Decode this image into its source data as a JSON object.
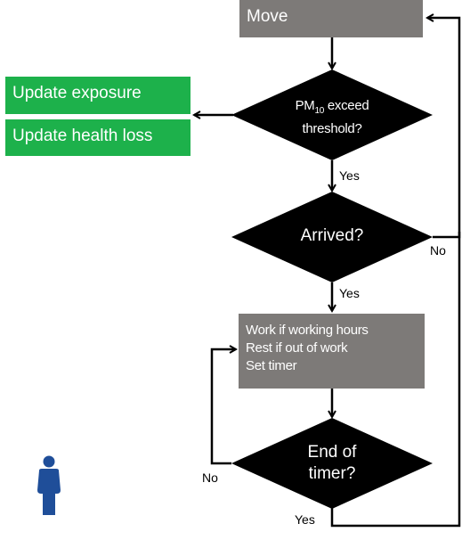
{
  "nodes": {
    "move": "Move",
    "update_exposure": "Update exposure",
    "update_health_loss": "Update health loss",
    "pm_check": {
      "pre": "PM",
      "sub": "10",
      "post": " exceed",
      "line2": "threshold?"
    },
    "arrived": "Arrived?",
    "work_lines": [
      "Work if working hours",
      "Rest if out of work",
      "Set timer"
    ],
    "end_timer_line1": "End of",
    "end_timer_line2": "timer?"
  },
  "edges": {
    "yes_pm": "Yes",
    "yes_arrived": "Yes",
    "no_arrived": "No",
    "no_timer": "No",
    "yes_timer": "Yes"
  },
  "colors": {
    "process": "#7d7a78",
    "update": "#1db14b",
    "decision": "#000000",
    "person": "#1f4e99"
  },
  "icons": {
    "person": "person-icon"
  }
}
